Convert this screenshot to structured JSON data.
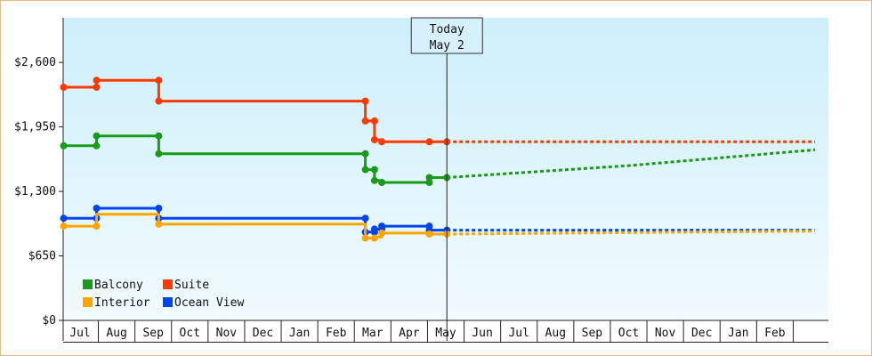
{
  "chart_data": {
    "type": "line",
    "title": "",
    "xlabel": "",
    "ylabel": "",
    "y_tick_labels": [
      "$0",
      "$650",
      "$1,300",
      "$1,950",
      "$2,600"
    ],
    "y_ticks": [
      0,
      650,
      1300,
      1950,
      2600
    ],
    "ylim": [
      0,
      3050
    ],
    "months": [
      "Jul",
      "Aug",
      "Sep",
      "Oct",
      "Nov",
      "Dec",
      "Jan",
      "Feb",
      "Mar",
      "Apr",
      "May",
      "Jun",
      "Jul",
      "Aug",
      "Sep",
      "Oct",
      "Nov",
      "Dec",
      "Jan",
      "Feb"
    ],
    "xlim": [
      -0.45,
      20.1
    ],
    "today": {
      "line1": "Today",
      "line2": "May 2",
      "x": 10.03
    },
    "grid": false,
    "legend_position": "bottom-left",
    "series": [
      {
        "name": "Balcony",
        "color": "#1a9a1a",
        "points": [
          [
            -0.45,
            1760
          ],
          [
            0.45,
            1760
          ],
          [
            0.45,
            1860
          ],
          [
            2.15,
            1860
          ],
          [
            2.15,
            1680
          ],
          [
            7.8,
            1680
          ],
          [
            7.8,
            1520
          ],
          [
            8.05,
            1520
          ],
          [
            8.05,
            1410
          ],
          [
            8.25,
            1410
          ],
          [
            8.25,
            1390
          ],
          [
            9.55,
            1390
          ],
          [
            9.55,
            1440
          ],
          [
            10.03,
            1440
          ]
        ],
        "markers": [
          [
            -0.45,
            1760
          ],
          [
            0.45,
            1760
          ],
          [
            0.45,
            1860
          ],
          [
            2.15,
            1860
          ],
          [
            2.15,
            1680
          ],
          [
            7.8,
            1680
          ],
          [
            7.8,
            1520
          ],
          [
            8.05,
            1520
          ],
          [
            8.05,
            1410
          ],
          [
            8.25,
            1390
          ],
          [
            9.55,
            1390
          ],
          [
            9.55,
            1440
          ],
          [
            10.03,
            1440
          ]
        ],
        "projection": [
          [
            10.03,
            1440
          ],
          [
            15.0,
            1560
          ],
          [
            20.1,
            1720
          ]
        ]
      },
      {
        "name": "Suite",
        "color": "#ff3a00",
        "points": [
          [
            -0.45,
            2350
          ],
          [
            0.45,
            2350
          ],
          [
            0.45,
            2420
          ],
          [
            2.15,
            2420
          ],
          [
            2.15,
            2210
          ],
          [
            7.8,
            2210
          ],
          [
            7.8,
            2010
          ],
          [
            8.05,
            2010
          ],
          [
            8.05,
            1820
          ],
          [
            8.25,
            1820
          ],
          [
            8.25,
            1800
          ],
          [
            10.03,
            1800
          ]
        ],
        "markers": [
          [
            -0.45,
            2350
          ],
          [
            0.45,
            2350
          ],
          [
            0.45,
            2420
          ],
          [
            2.15,
            2420
          ],
          [
            2.15,
            2210
          ],
          [
            7.8,
            2210
          ],
          [
            7.8,
            2010
          ],
          [
            8.05,
            2010
          ],
          [
            8.05,
            1820
          ],
          [
            8.25,
            1800
          ],
          [
            9.55,
            1800
          ],
          [
            10.03,
            1800
          ]
        ],
        "projection": [
          [
            10.03,
            1800
          ],
          [
            20.1,
            1800
          ]
        ]
      },
      {
        "name": "Ocean View",
        "color": "#0044ee",
        "points": [
          [
            -0.45,
            1030
          ],
          [
            0.45,
            1030
          ],
          [
            0.45,
            1130
          ],
          [
            2.15,
            1130
          ],
          [
            2.15,
            1030
          ],
          [
            7.8,
            1030
          ],
          [
            7.8,
            890
          ],
          [
            8.05,
            890
          ],
          [
            8.05,
            920
          ],
          [
            8.25,
            920
          ],
          [
            8.25,
            950
          ],
          [
            9.55,
            950
          ],
          [
            9.55,
            910
          ],
          [
            10.03,
            910
          ]
        ],
        "markers": [
          [
            -0.45,
            1030
          ],
          [
            0.45,
            1030
          ],
          [
            0.45,
            1130
          ],
          [
            2.15,
            1130
          ],
          [
            2.15,
            1030
          ],
          [
            7.8,
            1030
          ],
          [
            7.8,
            890
          ],
          [
            8.05,
            890
          ],
          [
            8.05,
            920
          ],
          [
            8.25,
            920
          ],
          [
            8.25,
            950
          ],
          [
            9.55,
            950
          ],
          [
            9.55,
            910
          ],
          [
            10.03,
            910
          ]
        ],
        "projection": [
          [
            10.03,
            910
          ],
          [
            20.1,
            910
          ]
        ]
      },
      {
        "name": "Interior",
        "color": "#ffa500",
        "points": [
          [
            -0.45,
            950
          ],
          [
            0.45,
            950
          ],
          [
            0.45,
            1070
          ],
          [
            2.15,
            1070
          ],
          [
            2.15,
            970
          ],
          [
            7.8,
            970
          ],
          [
            7.8,
            830
          ],
          [
            8.05,
            830
          ],
          [
            8.05,
            840
          ],
          [
            8.25,
            840
          ],
          [
            8.25,
            880
          ],
          [
            9.55,
            880
          ],
          [
            9.55,
            870
          ],
          [
            10.03,
            870
          ]
        ],
        "markers": [
          [
            -0.45,
            950
          ],
          [
            0.45,
            950
          ],
          [
            2.15,
            970
          ],
          [
            7.8,
            830
          ],
          [
            8.05,
            830
          ],
          [
            8.25,
            880
          ],
          [
            9.55,
            870
          ],
          [
            10.03,
            870
          ]
        ],
        "projection": [
          [
            10.03,
            870
          ],
          [
            20.1,
            900
          ]
        ]
      }
    ],
    "legend": [
      {
        "name": "Balcony",
        "color": "#1a9a1a"
      },
      {
        "name": "Suite",
        "color": "#ff3a00"
      },
      {
        "name": "Interior",
        "color": "#ffa500"
      },
      {
        "name": "Ocean View",
        "color": "#0044ee"
      }
    ]
  }
}
